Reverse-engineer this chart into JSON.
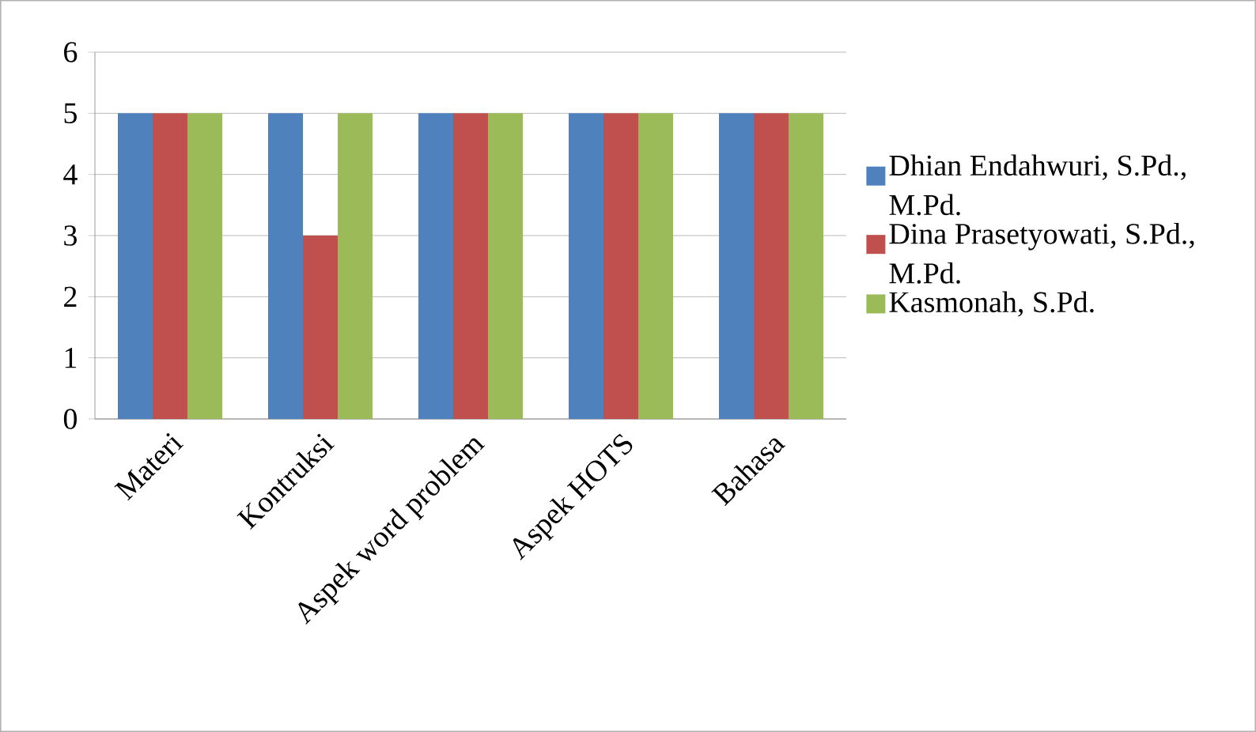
{
  "chart_data": {
    "type": "bar",
    "categories": [
      "Materi",
      "Kontruksi",
      "Aspek word problem",
      "Aspek HOTS",
      "Bahasa"
    ],
    "series": [
      {
        "name": "Dhian Endahwuri, S.Pd., M.Pd.",
        "color": "#4f81bd",
        "values": [
          5,
          5,
          5,
          5,
          5
        ]
      },
      {
        "name": "Dina Prasetyowati, S.Pd., M.Pd.",
        "color": "#c0504d",
        "values": [
          5,
          3,
          5,
          5,
          5
        ]
      },
      {
        "name": "Kasmonah, S.Pd.",
        "color": "#9bbb59",
        "values": [
          5,
          5,
          5,
          5,
          5
        ]
      }
    ],
    "ylim": [
      0,
      6
    ],
    "yticks": [
      0,
      1,
      2,
      3,
      4,
      5,
      6
    ],
    "grid": "y",
    "legend": "right"
  }
}
